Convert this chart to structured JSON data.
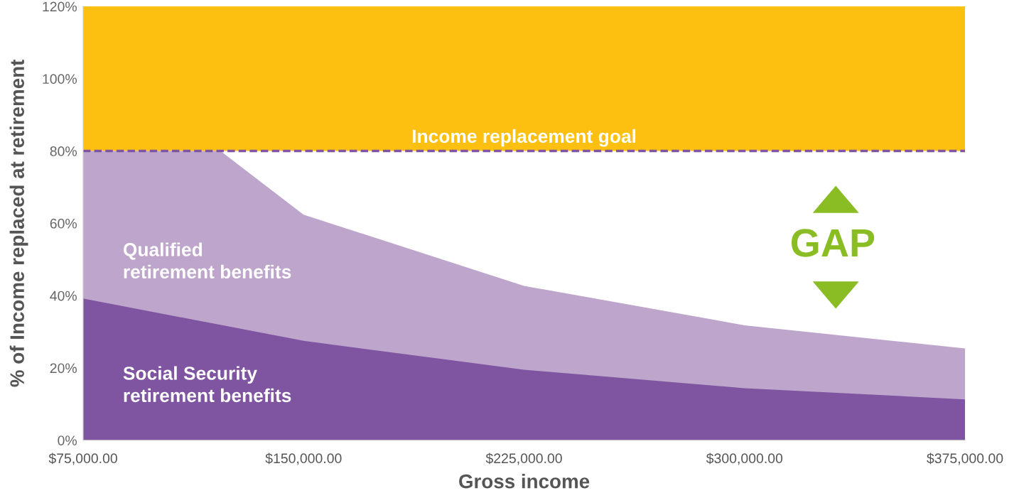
{
  "chart_data": {
    "type": "area",
    "xlabel": "Gross income",
    "ylabel": "% of Income replaced at retirement",
    "xlim": [
      75000,
      375000
    ],
    "ylim": [
      0,
      120
    ],
    "xticks": [
      {
        "value": 75000,
        "label": "$75,000.00"
      },
      {
        "value": 150000,
        "label": "$150,000.00"
      },
      {
        "value": 225000,
        "label": "$225,000.00"
      },
      {
        "value": 300000,
        "label": "$300,000.00"
      },
      {
        "value": 375000,
        "label": "$375,000.00"
      }
    ],
    "yticks": [
      {
        "value": 0,
        "label": "0%"
      },
      {
        "value": 20,
        "label": "20%"
      },
      {
        "value": 40,
        "label": "40%"
      },
      {
        "value": 60,
        "label": "60%"
      },
      {
        "value": 80,
        "label": "80%"
      },
      {
        "value": 100,
        "label": "100%"
      },
      {
        "value": 120,
        "label": "120%"
      }
    ],
    "series": [
      {
        "color": "#bea5cb",
        "x": [
          75000,
          121700,
          150000,
          225000,
          300000,
          375000
        ],
        "values": [
          80,
          80,
          62.4,
          42.7,
          31.8,
          25.4
        ]
      },
      {
        "color": "#7f54a0",
        "x": [
          75000,
          150000,
          225000,
          300000,
          375000
        ],
        "values": [
          39.2,
          27.5,
          19.5,
          14.4,
          11.3
        ]
      }
    ],
    "bands": [
      {
        "axis": "y",
        "from": 80,
        "to": 120,
        "label": "Income replacement goal",
        "color": "#fdc010"
      }
    ],
    "ref_lines": [
      {
        "axis": "y",
        "value": 80,
        "color": "#7f54a0",
        "line_style": "dashed"
      }
    ],
    "annotations": [
      "Qualified\nretirement benefits",
      "Social Security\nretirement benefits",
      "GAP"
    ],
    "grid": false,
    "legend": false
  }
}
